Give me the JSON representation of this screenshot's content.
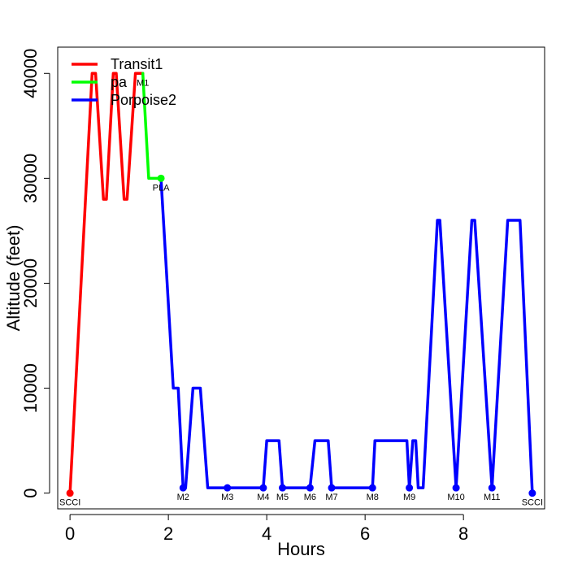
{
  "chart_data": {
    "type": "line",
    "title": "",
    "xlabel": "Hours",
    "ylabel": "Altitude (feet)",
    "xlim": [
      -0.25,
      9.65
    ],
    "ylim": [
      -1500,
      42500
    ],
    "x_ticks": [
      0,
      2,
      4,
      6,
      8
    ],
    "x_tick_labels": [
      "0",
      "2",
      "4",
      "6",
      "8"
    ],
    "y_ticks": [
      0,
      10000,
      20000,
      30000,
      40000
    ],
    "y_tick_labels": [
      "0",
      "10000",
      "20000",
      "30000",
      "40000"
    ],
    "grid": false,
    "legend_position": "top-left",
    "series": [
      {
        "name": "Transit1",
        "color": "#ff0000",
        "x": [
          0.0,
          0.45,
          0.52,
          0.68,
          0.74,
          0.88,
          0.94,
          1.1,
          1.16,
          1.33,
          1.48
        ],
        "y": [
          0,
          40000,
          40000,
          28000,
          28000,
          40000,
          40000,
          28000,
          28000,
          40000,
          40000
        ]
      },
      {
        "name": "pa",
        "color": "#00ff00",
        "x": [
          1.48,
          1.6,
          1.7,
          1.85
        ],
        "y": [
          40000,
          30000,
          30000,
          30000
        ]
      },
      {
        "name": "Porpoise2",
        "color": "#0000ff",
        "x": [
          1.85,
          2.1,
          2.2,
          2.3,
          2.35,
          2.5,
          2.65,
          2.8,
          3.2,
          3.93,
          4.0,
          4.25,
          4.32,
          4.88,
          4.98,
          5.25,
          5.32,
          6.15,
          6.2,
          6.85,
          6.9,
          6.97,
          7.03,
          7.08,
          7.18,
          7.47,
          7.52,
          7.85,
          8.17,
          8.23,
          8.58,
          8.9,
          9.15,
          9.4
        ],
        "y": [
          30000,
          10000,
          10000,
          500,
          500,
          10000,
          10000,
          500,
          500,
          500,
          5000,
          5000,
          500,
          500,
          5000,
          5000,
          500,
          500,
          5000,
          5000,
          500,
          5000,
          5000,
          500,
          500,
          26000,
          26000,
          500,
          26000,
          26000,
          500,
          26000,
          26000,
          0
        ]
      }
    ],
    "point_labels": [
      {
        "label": "SCCI",
        "x": 0.0,
        "y": 0,
        "color": "#ff0000",
        "dot": true
      },
      {
        "label": "M1",
        "x": 1.48,
        "y": 40000,
        "color": "#ff0000",
        "dot": false
      },
      {
        "label": "PLA",
        "x": 1.85,
        "y": 30000,
        "color": "#00ff00",
        "dot": true
      },
      {
        "label": "M2",
        "x": 2.3,
        "y": 500,
        "color": "#0000ff",
        "dot": true
      },
      {
        "label": "M3",
        "x": 3.2,
        "y": 500,
        "color": "#0000ff",
        "dot": true
      },
      {
        "label": "M4",
        "x": 3.93,
        "y": 500,
        "color": "#0000ff",
        "dot": true
      },
      {
        "label": "M5",
        "x": 4.32,
        "y": 500,
        "color": "#0000ff",
        "dot": true
      },
      {
        "label": "M6",
        "x": 4.88,
        "y": 500,
        "color": "#0000ff",
        "dot": true
      },
      {
        "label": "M7",
        "x": 5.32,
        "y": 500,
        "color": "#0000ff",
        "dot": true
      },
      {
        "label": "M8",
        "x": 6.15,
        "y": 500,
        "color": "#0000ff",
        "dot": true
      },
      {
        "label": "M9",
        "x": 6.9,
        "y": 500,
        "color": "#0000ff",
        "dot": true
      },
      {
        "label": "M10",
        "x": 7.85,
        "y": 500,
        "color": "#0000ff",
        "dot": true
      },
      {
        "label": "M11",
        "x": 8.58,
        "y": 500,
        "color": "#0000ff",
        "dot": true
      },
      {
        "label": "SCCI",
        "x": 9.4,
        "y": 0,
        "color": "#0000ff",
        "dot": true
      }
    ]
  }
}
